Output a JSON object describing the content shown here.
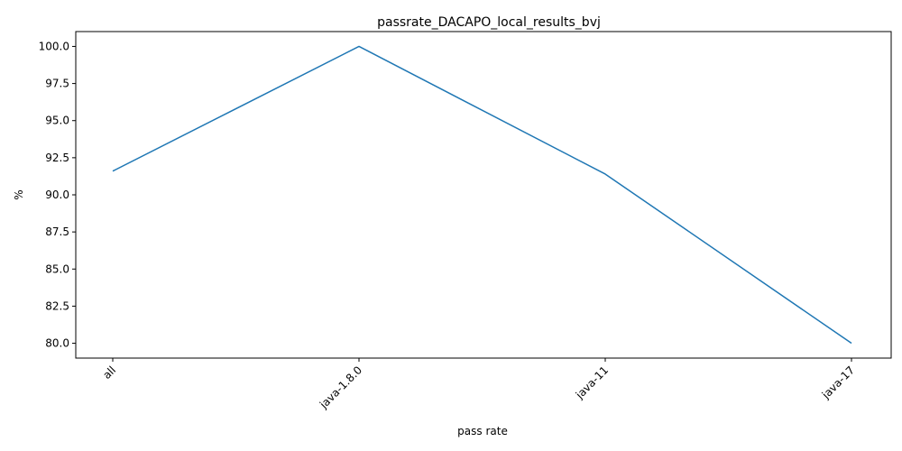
{
  "chart_data": {
    "type": "line",
    "title": "passrate_DACAPO_local_results_bvj",
    "xlabel": "pass rate",
    "ylabel": "%",
    "categories": [
      "all",
      "java-1.8.0",
      "java-11",
      "java-17"
    ],
    "series": [
      {
        "values": [
          91.6,
          100.0,
          91.4,
          80.0
        ],
        "color": "#1f77b4"
      }
    ],
    "yticks": [
      "80.0",
      "82.5",
      "85.0",
      "87.5",
      "90.0",
      "92.5",
      "95.0",
      "97.5",
      "100.0"
    ],
    "ylim": [
      79,
      101
    ],
    "grid": false,
    "legend": "none"
  }
}
